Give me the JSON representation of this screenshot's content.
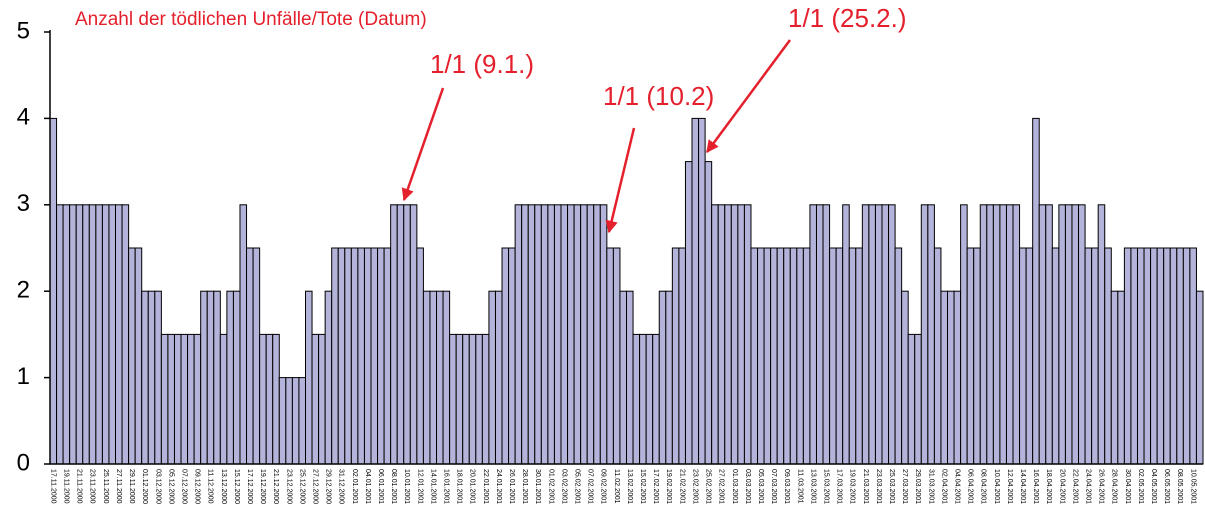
{
  "chart_data": {
    "type": "bar",
    "title": "Anzahl der tödlichen Unfälle/Tote (Datum)",
    "annotations": [
      "1/1 (9.1.)",
      "1/1 (10.2)",
      "1/1 (25.2.)"
    ],
    "color": "#b4b4da",
    "ylim": [
      0,
      5
    ],
    "yticks": [
      0,
      1,
      2,
      3,
      4,
      5
    ],
    "grid": false,
    "categories": [
      "17.11.2000",
      null,
      "19.11.2000",
      null,
      "21.11.2000",
      null,
      "23.11.2000",
      null,
      "25.11.2000",
      null,
      "27.11.2000",
      null,
      "29.11.2000",
      null,
      "01.12.2000",
      null,
      "03.12.2000",
      null,
      "05.12.2000",
      null,
      "07.12.2000",
      null,
      "09.12.2000",
      null,
      "11.12.2000",
      null,
      "13.12.2000",
      null,
      "15.12.2000",
      null,
      "17.12.2000",
      null,
      "19.12.2000",
      null,
      "21.12.2000",
      null,
      "23.12.2000",
      null,
      "25.12.2000",
      null,
      "27.12.2000",
      null,
      "29.12.2000",
      null,
      "31.12.2000",
      null,
      "02.01.2001",
      null,
      "04.01.2001",
      null,
      "06.01.2001",
      null,
      "08.01.2001",
      null,
      "10.01.2001",
      null,
      "12.01.2001",
      null,
      "14.01.2001",
      null,
      "16.01.2001",
      null,
      "18.01.2001",
      null,
      "20.01.2001",
      null,
      "22.01.2001",
      null,
      "24.01.2001",
      null,
      "26.01.2001",
      null,
      "28.01.2001",
      null,
      "30.01.2001",
      null,
      "01.02.2001",
      null,
      "03.02.2001",
      null,
      "05.02.2001",
      null,
      "07.02.2001",
      null,
      "09.02.2001",
      null,
      "11.02.2001",
      null,
      "13.02.2001",
      null,
      "15.02.2001",
      null,
      "17.02.2001",
      null,
      "19.02.2001",
      null,
      "21.02.2001",
      null,
      "23.02.2001",
      null,
      "25.02.2001",
      null,
      "27.02.2001",
      null,
      "01.03.2001",
      null,
      "03.03.2001",
      null,
      "05.03.2001",
      null,
      "07.03.2001",
      null,
      "09.03.2001",
      null,
      "11.03.2001",
      null,
      "13.03.2001",
      null,
      "15.03.2001",
      null,
      "17.03.2001",
      null,
      "19.03.2001",
      null,
      "21.03.2001",
      null,
      "23.03.2001",
      null,
      "25.03.2001",
      null,
      "27.03.2001",
      null,
      "29.03.2001",
      null,
      "31.03.2001",
      null,
      "02.04.2001",
      null,
      "04.04.2001",
      null,
      "06.04.2001",
      null,
      "08.04.2001",
      null,
      "10.04.2001",
      null,
      "12.04.2001",
      null,
      "14.04.2001",
      null,
      "16.04.2001",
      null,
      "18.04.2001",
      null,
      "20.04.2001",
      null,
      "22.04.2001",
      null,
      "24.04.2001",
      null,
      "26.04.2001",
      null,
      "28.04.2001",
      null,
      "30.04.2001",
      null,
      "02.05.2001",
      null,
      "04.05.2001",
      null,
      "06.05.2001",
      null,
      "08.05.2001",
      null,
      "10.05.2001",
      null
    ],
    "values": [
      4,
      3,
      3,
      3,
      3,
      3,
      3,
      3,
      3,
      3,
      3,
      3,
      2.5,
      2.5,
      2,
      2,
      2,
      1.5,
      1.5,
      1.5,
      1.5,
      1.5,
      1.5,
      2,
      2,
      2,
      1.5,
      2,
      2,
      3,
      2.5,
      2.5,
      1.5,
      1.5,
      1.5,
      1,
      1,
      1,
      1,
      2,
      1.5,
      1.5,
      2,
      2.5,
      2.5,
      2.5,
      2.5,
      2.5,
      2.5,
      2.5,
      2.5,
      2.5,
      3,
      3,
      3,
      3,
      2.5,
      2,
      2,
      2,
      2,
      1.5,
      1.5,
      1.5,
      1.5,
      1.5,
      1.5,
      2,
      2,
      2.5,
      2.5,
      3,
      3,
      3,
      3,
      3,
      3,
      3,
      3,
      3,
      3,
      3,
      3,
      3,
      3,
      2.5,
      2.5,
      2,
      2,
      1.5,
      1.5,
      1.5,
      1.5,
      2,
      2,
      2.5,
      2.5,
      3.5,
      4,
      4,
      3.5,
      3,
      3,
      3,
      3,
      3,
      3,
      2.5,
      2.5,
      2.5,
      2.5,
      2.5,
      2.5,
      2.5,
      2.5,
      2.5,
      3,
      3,
      3,
      2.5,
      2.5,
      3,
      2.5,
      2.5,
      3,
      3,
      3,
      3,
      3,
      2.5,
      2,
      1.5,
      1.5,
      3,
      3,
      2.5,
      2,
      2,
      2,
      3,
      2.5,
      2.5,
      3,
      3,
      3,
      3,
      3,
      3,
      2.5,
      2.5,
      4,
      3,
      3,
      2.5,
      3,
      3,
      3,
      3,
      2.5,
      2.5,
      3,
      2.5,
      2,
      2,
      2.5,
      2.5,
      2.5,
      2.5,
      2.5,
      2.5,
      2.5,
      2.5,
      2.5,
      2.5,
      2.5,
      2
    ]
  }
}
